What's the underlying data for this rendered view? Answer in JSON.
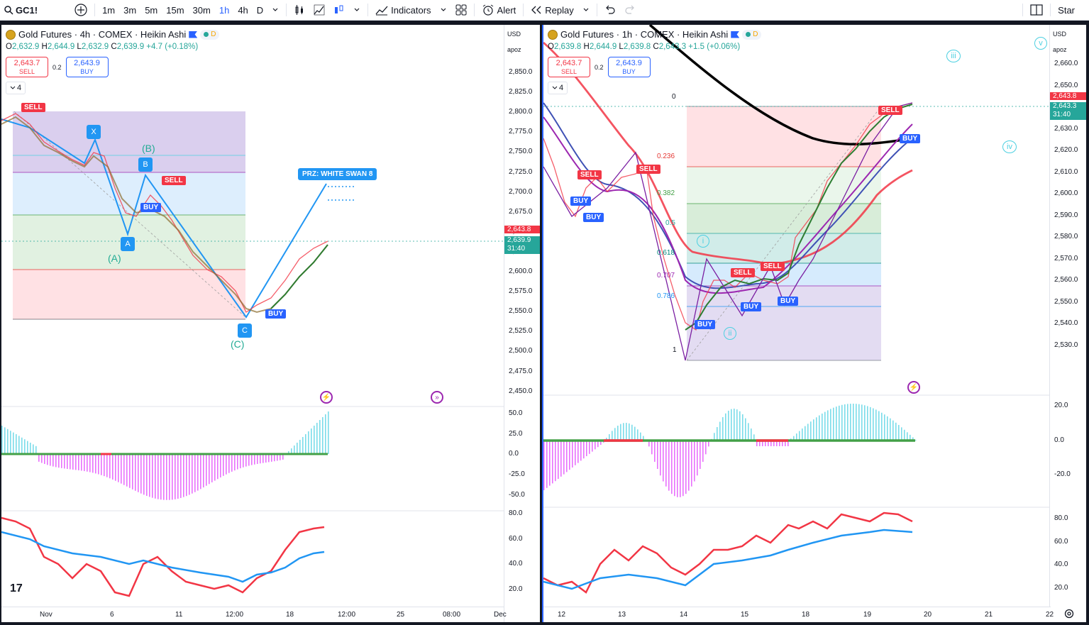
{
  "toolbar": {
    "symbol": "GC1!",
    "intervals": [
      "1m",
      "3m",
      "5m",
      "15m",
      "30m",
      "1h",
      "4h",
      "D"
    ],
    "active_interval": "1h",
    "indicators_label": "Indicators",
    "alert_label": "Alert",
    "replay_label": "Replay",
    "star_label": "Star"
  },
  "left": {
    "title": "Gold Futures · 4h · COMEX · Heikin Ashi",
    "d_badge": "D",
    "ohlc": {
      "o": "2,632.9",
      "h": "2,644.9",
      "l": "2,632.9",
      "c": "2,639.9",
      "chg": "+4.7 (+0.18%)"
    },
    "sell_price": "2,643.7",
    "sell_label": "SELL",
    "buy_price": "2,643.9",
    "buy_label": "BUY",
    "spread": "0.2",
    "collapse": "4",
    "currency": "USD",
    "scale_mode": "apoz",
    "price_ticks": [
      "2,850.0",
      "2,825.0",
      "2,800.0",
      "2,775.0",
      "2,750.0",
      "2,725.0",
      "2,700.0",
      "2,675.0",
      "2,650.0",
      "2,625.0",
      "2,600.0",
      "2,575.0",
      "2,550.0",
      "2,525.0",
      "2,500.0",
      "2,475.0",
      "2,450.0"
    ],
    "last_price": "2,643.8",
    "close_price": "2,639.9",
    "countdown": "31:40",
    "osc_ticks": [
      "50.0",
      "25.0",
      "0.0",
      "-25.0",
      "-50.0"
    ],
    "rsi_ticks": [
      "80.0",
      "60.0",
      "40.0",
      "20.0"
    ],
    "time_labels": [
      "Nov",
      "6",
      "11",
      "12:00",
      "18",
      "12:00",
      "25",
      "08:00",
      "Dec"
    ],
    "prz_label": "PRZ: WHITE SWAN 8",
    "points": {
      "x": "X",
      "a": "A",
      "b": "B",
      "c": "C"
    },
    "waves": {
      "a": "(A)",
      "b": "(B)",
      "c": "(C)"
    },
    "signals": {
      "sell": "SELL",
      "buy": "BUY"
    }
  },
  "right": {
    "title": "Gold Futures · 1h · COMEX · Heikin Ashi",
    "d_badge": "D",
    "ohlc": {
      "o": "2,639.8",
      "h": "2,644.9",
      "l": "2,639.8",
      "c": "2,643.3",
      "chg": "+1.5 (+0.06%)"
    },
    "sell_price": "2,643.7",
    "sell_label": "SELL",
    "buy_price": "2,643.9",
    "buy_label": "BUY",
    "spread": "0.2",
    "collapse": "4",
    "currency": "USD",
    "scale_mode": "apoz",
    "price_ticks": [
      "2,660.0",
      "2,650.0",
      "2,640.0",
      "2,630.0",
      "2,620.0",
      "2,610.0",
      "2,600.0",
      "2,590.0",
      "2,580.0",
      "2,570.0",
      "2,560.0",
      "2,550.0",
      "2,540.0",
      "2,530.0"
    ],
    "last_price": "2,643.8",
    "close_price": "2,643.3",
    "countdown": "31:40",
    "osc_ticks": [
      "20.0",
      "0.0",
      "-20.0"
    ],
    "rsi_ticks": [
      "80.0",
      "60.0",
      "40.0",
      "20.0"
    ],
    "time_labels": [
      "12",
      "13",
      "14",
      "15",
      "18",
      "19",
      "20",
      "21",
      "22"
    ],
    "fib_levels": [
      "0",
      "0.236",
      "0.382",
      "0.5",
      "0.618",
      "0.707",
      "0.786",
      "1"
    ],
    "waves": {
      "i": "i",
      "ii": "ii",
      "iii": "iii",
      "iv": "iv",
      "v": "v"
    },
    "signals": {
      "sell": "SELL",
      "buy": "BUY"
    }
  }
}
